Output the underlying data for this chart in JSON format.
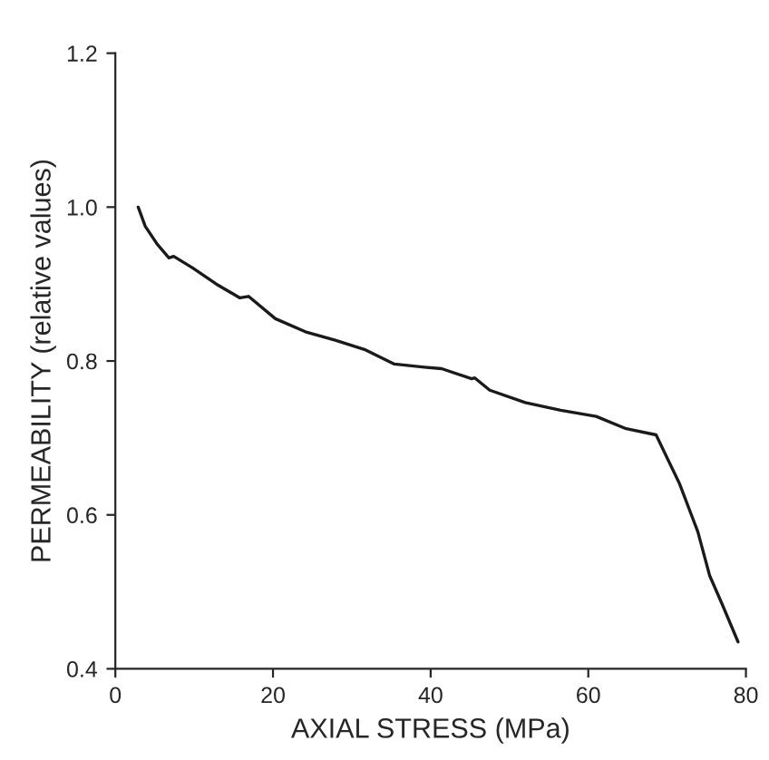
{
  "chart_data": {
    "type": "line",
    "xlabel": "AXIAL STRESS (MPa)",
    "ylabel": "PERMEABILITY (relative values)",
    "x": [
      2.9,
      3.8,
      5.3,
      6.8,
      7.4,
      9.8,
      12.8,
      15.8,
      16.9,
      20.3,
      24.1,
      27.9,
      31.6,
      35.4,
      39.2,
      41.4,
      45.2,
      45.6,
      47.5,
      52.0,
      56.5,
      61.0,
      64.8,
      68.6,
      71.6,
      73.9,
      75.4,
      76.9,
      79.0
    ],
    "series": [
      {
        "color": "#1a1a1a",
        "values": [
          1.0,
          0.975,
          0.952,
          0.934,
          0.936,
          0.921,
          0.9,
          0.882,
          0.884,
          0.855,
          0.838,
          0.827,
          0.815,
          0.796,
          0.792,
          0.79,
          0.777,
          0.778,
          0.762,
          0.746,
          0.736,
          0.728,
          0.712,
          0.704,
          0.64,
          0.578,
          0.521,
          0.486,
          0.435
        ]
      }
    ],
    "xlim": [
      0,
      80
    ],
    "xticks": [
      0,
      20,
      40,
      60,
      80
    ],
    "ylim": [
      0.4,
      1.2
    ],
    "yticks": [
      0.4,
      0.6,
      0.8,
      {
        "value": 1.0,
        "label": "1.0"
      },
      1.2
    ],
    "grid": false,
    "legend": false,
    "marker": "none",
    "line_style": "solid"
  }
}
